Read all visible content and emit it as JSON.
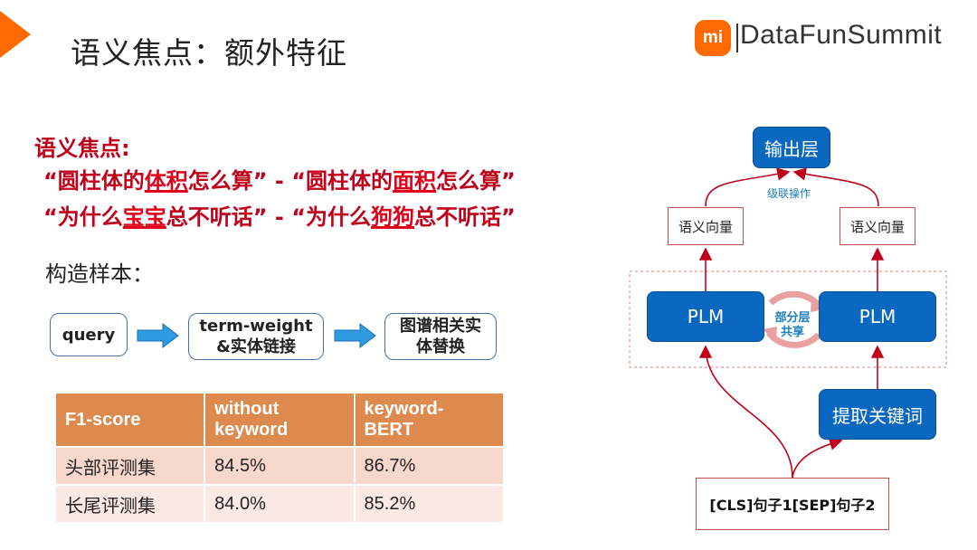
{
  "slide": {
    "title": "语义焦点：额外特征"
  },
  "brand": {
    "logo_mark": "mi",
    "name": "DataFunSummit",
    "accent_color": "#ff6a00"
  },
  "focus": {
    "heading": "语义焦点:",
    "line1": {
      "a_pre": "“圆柱体的",
      "a_hl": "体积",
      "a_post": "怎么算”",
      "sep": " - ",
      "b_pre": "“圆柱体的",
      "b_hl": "面积",
      "b_post": "怎么算”"
    },
    "line2": {
      "a_pre": "“为什么",
      "a_hl": "宝宝",
      "a_post": "总不听话”",
      "sep": " - ",
      "b_pre": "“为什么",
      "b_hl": "狗狗",
      "b_post": "总不听话”"
    }
  },
  "samples": {
    "label": "构造样本：",
    "steps": [
      {
        "line1": "query",
        "line2": ""
      },
      {
        "line1": "term-weight",
        "line2": "&实体链接"
      },
      {
        "line1": "图谱相关实",
        "line2": "体替换"
      }
    ]
  },
  "table": {
    "headers": [
      {
        "line1": "F1-score",
        "line2": ""
      },
      {
        "line1": "without",
        "line2": "keyword"
      },
      {
        "line1": "keyword-",
        "line2": "BERT"
      }
    ],
    "rows": [
      [
        "头部评测集",
        "84.5%",
        "86.7%"
      ],
      [
        "长尾评测集",
        "84.0%",
        "85.2%"
      ]
    ]
  },
  "diagram": {
    "output": "输出层",
    "concat": "级联操作",
    "vec_left": "语义向量",
    "vec_right": "语义向量",
    "plm_left": "PLM",
    "plm_right": "PLM",
    "share_line1": "部分层",
    "share_line2": "共享",
    "extract": "提取关键词",
    "input": "[CLS]句子1[SEP]句子2",
    "box_color": "#0b68c0",
    "arrow_color": "#c0001a"
  }
}
